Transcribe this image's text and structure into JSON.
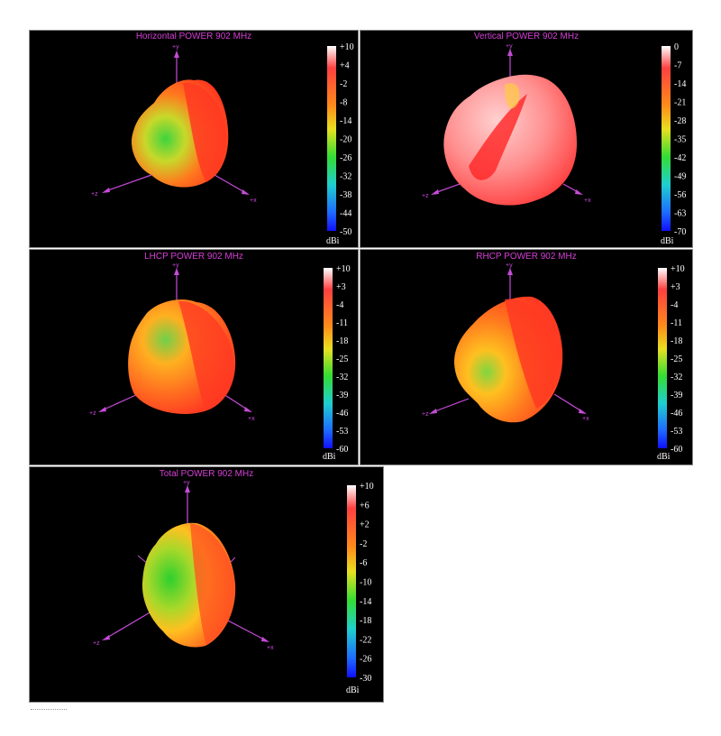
{
  "chart_data": [
    {
      "type": "other",
      "title": "Horizontal POWER 902  MHz",
      "axes": [
        "+y",
        "+z",
        "+x"
      ],
      "colorbar_ticks": [
        "+10",
        "+4",
        "-2",
        "-8",
        "-14",
        "-20",
        "-26",
        "-32",
        "-38",
        "-44",
        "-50"
      ],
      "colorbar_range": [
        -50,
        10
      ],
      "unit": "dBi"
    },
    {
      "type": "other",
      "title": "Vertical POWER 902  MHz",
      "axes": [
        "+y",
        "+z",
        "+x"
      ],
      "colorbar_ticks": [
        "0",
        "-7",
        "-14",
        "-21",
        "-28",
        "-35",
        "-42",
        "-49",
        "-56",
        "-63",
        "-70"
      ],
      "colorbar_range": [
        -70,
        0
      ],
      "unit": "dBi"
    },
    {
      "type": "other",
      "title": "LHCP POWER 902  MHz",
      "axes": [
        "+y",
        "+z",
        "+x"
      ],
      "colorbar_ticks": [
        "+10",
        "+3",
        "-4",
        "-11",
        "-18",
        "-25",
        "-32",
        "-39",
        "-46",
        "-53",
        "-60"
      ],
      "colorbar_range": [
        -60,
        10
      ],
      "unit": "dBi"
    },
    {
      "type": "other",
      "title": "RHCP POWER 902  MHz",
      "axes": [
        "+y",
        "+z",
        "+x"
      ],
      "colorbar_ticks": [
        "+10",
        "+3",
        "-4",
        "-11",
        "-18",
        "-25",
        "-32",
        "-39",
        "-46",
        "-53",
        "-60"
      ],
      "colorbar_range": [
        -60,
        10
      ],
      "unit": "dBi"
    },
    {
      "type": "other",
      "title": "Total POWER 902  MHz",
      "axes": [
        "+y",
        "+z",
        "+x"
      ],
      "colorbar_ticks": [
        "+10",
        "+6",
        "+2",
        "-2",
        "-6",
        "-10",
        "-14",
        "-18",
        "-22",
        "-26",
        "-30"
      ],
      "colorbar_range": [
        -30,
        10
      ],
      "unit": "dBi"
    }
  ],
  "colors": {
    "background": "#000000",
    "axis": "#c64bd8",
    "title": "#d63fd6",
    "colormap": [
      "#ffffff",
      "#ff2a2a",
      "#ff8a1a",
      "#f0e020",
      "#33dd33",
      "#1fcfcf",
      "#1e6bff",
      "#1010ff"
    ]
  }
}
